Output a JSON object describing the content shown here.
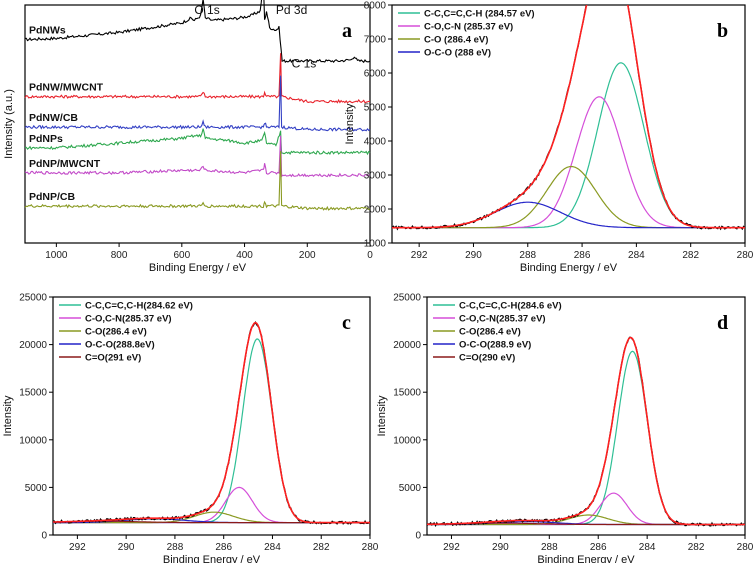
{
  "chart_data": [
    {
      "id": "a",
      "type": "line",
      "panel_label": "a",
      "xlabel": "Binding Energy / eV",
      "ylabel": "Intensity (a.u.)",
      "xlim": [
        1100,
        0
      ],
      "xticks": [
        1000,
        800,
        600,
        400,
        200,
        0
      ],
      "series": [
        {
          "name": "PdNWs",
          "color": "#000000",
          "base": 0.855,
          "points": [
            [
              1100,
              0
            ],
            [
              1000,
              0.005
            ],
            [
              800,
              0.03
            ],
            [
              700,
              0.05
            ],
            [
              600,
              0.07
            ],
            [
              570,
              0.09
            ],
            [
              560,
              0.08
            ],
            [
              540,
              0.1
            ],
            [
              532,
              0.17
            ],
            [
              525,
              0.09
            ],
            [
              500,
              0.08
            ],
            [
              420,
              0.09
            ],
            [
              380,
              0.1
            ],
            [
              350,
              0.12
            ],
            [
              340,
              0.24
            ],
            [
              336,
              0.08
            ],
            [
              330,
              0.12
            ],
            [
              320,
              0.05
            ],
            [
              300,
              0.04
            ],
            [
              290,
              0.05
            ],
            [
              280,
              -0.09
            ],
            [
              270,
              -0.09
            ],
            [
              200,
              -0.09
            ],
            [
              100,
              -0.09
            ],
            [
              60,
              -0.085
            ],
            [
              50,
              -0.07
            ],
            [
              40,
              -0.09
            ],
            [
              0,
              -0.09
            ]
          ]
        },
        {
          "name": "PdNW/MWCNT",
          "color": "#e8222b",
          "base": 0.615,
          "points": [
            [
              1100,
              0
            ],
            [
              800,
              0
            ],
            [
              600,
              0
            ],
            [
              540,
              0
            ],
            [
              532,
              0.02
            ],
            [
              525,
              0
            ],
            [
              400,
              0
            ],
            [
              340,
              0
            ],
            [
              336,
              0.02
            ],
            [
              330,
              0
            ],
            [
              290,
              0
            ],
            [
              285,
              0.18
            ],
            [
              282,
              0
            ],
            [
              200,
              -0.02
            ],
            [
              0,
              -0.02
            ]
          ]
        },
        {
          "name": "PdNW/CB",
          "color": "#3340c4",
          "base": 0.487,
          "points": [
            [
              1100,
              0
            ],
            [
              800,
              0
            ],
            [
              600,
              0
            ],
            [
              540,
              0
            ],
            [
              532,
              0.02
            ],
            [
              525,
              0
            ],
            [
              400,
              0
            ],
            [
              340,
              0
            ],
            [
              336,
              0.02
            ],
            [
              330,
              0
            ],
            [
              290,
              0
            ],
            [
              285,
              0.22
            ],
            [
              282,
              0
            ],
            [
              200,
              -0.01
            ],
            [
              0,
              -0.01
            ]
          ]
        },
        {
          "name": "PdNPs",
          "color": "#2fa84f",
          "base": 0.4,
          "points": [
            [
              1100,
              0
            ],
            [
              1000,
              0
            ],
            [
              900,
              0.01
            ],
            [
              800,
              0.02
            ],
            [
              700,
              0.03
            ],
            [
              600,
              0.04
            ],
            [
              560,
              0.05
            ],
            [
              540,
              0.05
            ],
            [
              532,
              0.08
            ],
            [
              525,
              0.04
            ],
            [
              450,
              0.03
            ],
            [
              400,
              0.02
            ],
            [
              345,
              0.03
            ],
            [
              336,
              0.06
            ],
            [
              330,
              0.02
            ],
            [
              300,
              0.01
            ],
            [
              285,
              0.07
            ],
            [
              282,
              -0.02
            ],
            [
              200,
              -0.02
            ],
            [
              0,
              -0.02
            ]
          ]
        },
        {
          "name": "PdNP/MWCNT",
          "color": "#c24ac8",
          "base": 0.295,
          "points": [
            [
              1100,
              0
            ],
            [
              800,
              0
            ],
            [
              600,
              0.01
            ],
            [
              540,
              0.01
            ],
            [
              532,
              0.03
            ],
            [
              525,
              0.01
            ],
            [
              400,
              0
            ],
            [
              340,
              0.01
            ],
            [
              336,
              0.04
            ],
            [
              330,
              0
            ],
            [
              290,
              0
            ],
            [
              285,
              0.16
            ],
            [
              282,
              -0.01
            ],
            [
              200,
              -0.01
            ],
            [
              0,
              -0.01
            ]
          ]
        },
        {
          "name": "PdNP/CB",
          "color": "#8a9a22",
          "base": 0.155,
          "points": [
            [
              1100,
              0
            ],
            [
              800,
              0
            ],
            [
              600,
              0
            ],
            [
              540,
              0
            ],
            [
              532,
              0.01
            ],
            [
              525,
              0
            ],
            [
              400,
              0
            ],
            [
              340,
              0
            ],
            [
              336,
              0.02
            ],
            [
              330,
              0
            ],
            [
              290,
              0
            ],
            [
              285,
              0.23
            ],
            [
              282,
              0
            ],
            [
              200,
              -0.01
            ],
            [
              0,
              -0.01
            ]
          ]
        }
      ],
      "peak_labels": [
        {
          "text": "O 1s",
          "x": 560,
          "y": 1.03
        },
        {
          "text": "Pd 3d",
          "x": 300,
          "y": 1.03
        },
        {
          "text": "C 1s",
          "x": 250,
          "y": 0.805
        }
      ]
    },
    {
      "id": "b",
      "type": "line",
      "panel_label": "b",
      "xlabel": "Binding Energy / eV",
      "ylabel": "Intensity",
      "xlim": [
        293,
        280
      ],
      "ylim": [
        1000,
        8000
      ],
      "xticks": [
        292,
        290,
        288,
        286,
        284,
        282,
        280
      ],
      "yticks": [
        1000,
        2000,
        3000,
        4000,
        5000,
        6000,
        7000,
        8000
      ],
      "baseline": 1450,
      "peaks": [
        {
          "name": "C-C,C=C,C-H (284.57 eV)",
          "center": 284.57,
          "height": 4850,
          "width": 0.85,
          "color": "#2fbf95"
        },
        {
          "name": "C-O,C-N (285.37 eV)",
          "center": 285.37,
          "height": 3850,
          "width": 0.85,
          "color": "#d54fd9"
        },
        {
          "name": "C-O (286.4 eV)",
          "center": 286.4,
          "height": 1800,
          "width": 0.9,
          "color": "#8a9a22"
        },
        {
          "name": "O-C-O (288 eV)",
          "center": 288.0,
          "height": 750,
          "width": 1.2,
          "color": "#2424c8"
        }
      ],
      "envelope_color": "#ff2020",
      "raw_color": "#000000"
    },
    {
      "id": "c",
      "type": "line",
      "panel_label": "c",
      "xlabel": "Binding Energy / eV",
      "ylabel": "Intensity",
      "xlim": [
        293,
        280
      ],
      "ylim": [
        0,
        25000
      ],
      "xticks": [
        292,
        290,
        288,
        286,
        284,
        282,
        280
      ],
      "yticks": [
        0,
        5000,
        10000,
        15000,
        20000,
        25000
      ],
      "baseline": 1300,
      "peaks": [
        {
          "name": "C-C,C=C,C-H(284.62 eV)",
          "center": 284.62,
          "height": 19300,
          "width": 0.6,
          "color": "#2fbf95"
        },
        {
          "name": "C-O,C-N(285.37 eV)",
          "center": 285.37,
          "height": 3700,
          "width": 0.55,
          "color": "#d54fd9"
        },
        {
          "name": "C-O(286.4 eV)",
          "center": 286.4,
          "height": 1100,
          "width": 0.8,
          "color": "#8a9a22"
        },
        {
          "name": "O-C-O(288.8eV)",
          "center": 288.8,
          "height": 400,
          "width": 1.2,
          "color": "#2424c8"
        },
        {
          "name": "C=O(291 eV)",
          "center": 291.0,
          "height": 150,
          "width": 1.5,
          "color": "#8b1a1a"
        }
      ],
      "envelope_color": "#ff2020",
      "raw_color": "#000000"
    },
    {
      "id": "d",
      "type": "line",
      "panel_label": "d",
      "xlabel": "Binding Energy / eV",
      "ylabel": "Intensity",
      "xlim": [
        293,
        280
      ],
      "ylim": [
        0,
        25000
      ],
      "xticks": [
        292,
        290,
        288,
        286,
        284,
        282,
        280
      ],
      "yticks": [
        0,
        5000,
        10000,
        15000,
        20000,
        25000
      ],
      "baseline": 1100,
      "peaks": [
        {
          "name": "C-C,C=C,C-H(284.6 eV)",
          "center": 284.6,
          "height": 18200,
          "width": 0.6,
          "color": "#2fbf95"
        },
        {
          "name": "C-O,C-N(285.37 eV)",
          "center": 285.37,
          "height": 3300,
          "width": 0.55,
          "color": "#d54fd9"
        },
        {
          "name": "C-O(286.4 eV)",
          "center": 286.4,
          "height": 1000,
          "width": 0.8,
          "color": "#8a9a22"
        },
        {
          "name": "O-C-O(288.9 eV)",
          "center": 288.9,
          "height": 300,
          "width": 1.2,
          "color": "#2424c8"
        },
        {
          "name": "C=O(290 eV)",
          "center": 290.0,
          "height": 150,
          "width": 1.5,
          "color": "#8b1a1a"
        }
      ],
      "envelope_color": "#ff2020",
      "raw_color": "#000000"
    }
  ]
}
